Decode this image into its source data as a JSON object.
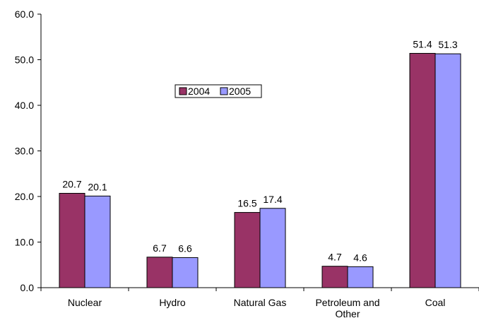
{
  "chart_data": {
    "type": "bar",
    "categories": [
      "Nuclear",
      "Hydro",
      "Natural Gas",
      "Petroleum and Other",
      "Coal"
    ],
    "series": [
      {
        "name": "2004",
        "color": "#993366",
        "values": [
          20.7,
          6.7,
          16.5,
          4.7,
          51.4
        ]
      },
      {
        "name": "2005",
        "color": "#9999ff",
        "values": [
          20.1,
          6.6,
          17.4,
          4.6,
          51.3
        ]
      }
    ],
    "ylim": [
      0,
      60
    ],
    "yticks": [
      {
        "value": 0,
        "label": "0.0"
      },
      {
        "value": 10,
        "label": "10.0"
      },
      {
        "value": 20,
        "label": "20.0"
      },
      {
        "value": 30,
        "label": "30.0"
      },
      {
        "value": 40,
        "label": "40.0"
      },
      {
        "value": 50,
        "label": "50.0"
      },
      {
        "value": 60,
        "label": "60.0"
      }
    ],
    "grid": false
  }
}
